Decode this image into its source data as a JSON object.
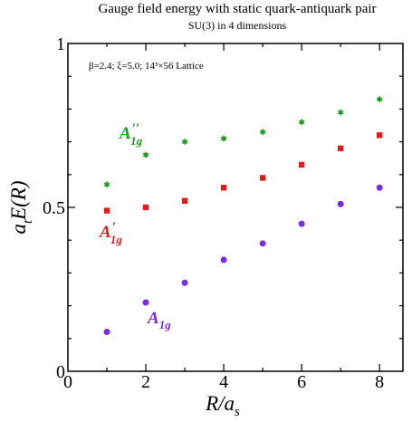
{
  "chart_data": {
    "type": "scatter",
    "title": "Gauge field energy with static quark-antiquark pair",
    "subtitle": "SU(3) in 4 dimensions",
    "parameters": "β=2.4;  ξ=5.0;  14³×56 Lattice",
    "xlabel": "R/a_s",
    "ylabel": "a_t E(R)",
    "xlim": [
      0,
      8.6
    ],
    "ylim": [
      0,
      1.0
    ],
    "x_ticks": [
      0,
      2,
      4,
      6,
      8
    ],
    "y_ticks": [
      0,
      0.5,
      1
    ],
    "y_tick_labels": [
      "0",
      "0.5",
      "1"
    ],
    "x": [
      1,
      2,
      3,
      4,
      5,
      6,
      7,
      8
    ],
    "series": [
      {
        "name": "A1g''",
        "marker": "star",
        "color": "#1a9e1a",
        "values": [
          0.57,
          0.66,
          0.7,
          0.71,
          0.73,
          0.76,
          0.79,
          0.83
        ]
      },
      {
        "name": "A1g'",
        "marker": "square",
        "color": "#e31a1a",
        "values": [
          0.49,
          0.5,
          0.52,
          0.56,
          0.59,
          0.63,
          0.68,
          0.72
        ]
      },
      {
        "name": "A1g",
        "marker": "circle",
        "color": "#7b2be0",
        "values": [
          0.12,
          0.21,
          0.27,
          0.34,
          0.39,
          0.45,
          0.51,
          0.56
        ]
      }
    ],
    "annotations": {
      "a1g_dprime": {
        "main": "A",
        "sub": "1g",
        "sup": "′′"
      },
      "a1g_prime": {
        "main": "A",
        "sub": "1g",
        "sup": "′"
      },
      "a1g": {
        "main": "A",
        "sub": "1g"
      }
    },
    "ylabel_parts": {
      "a": "a",
      "t": "t",
      "E": "E(R)"
    },
    "xlabel_parts": {
      "main": "R/a",
      "sub": "s"
    }
  }
}
